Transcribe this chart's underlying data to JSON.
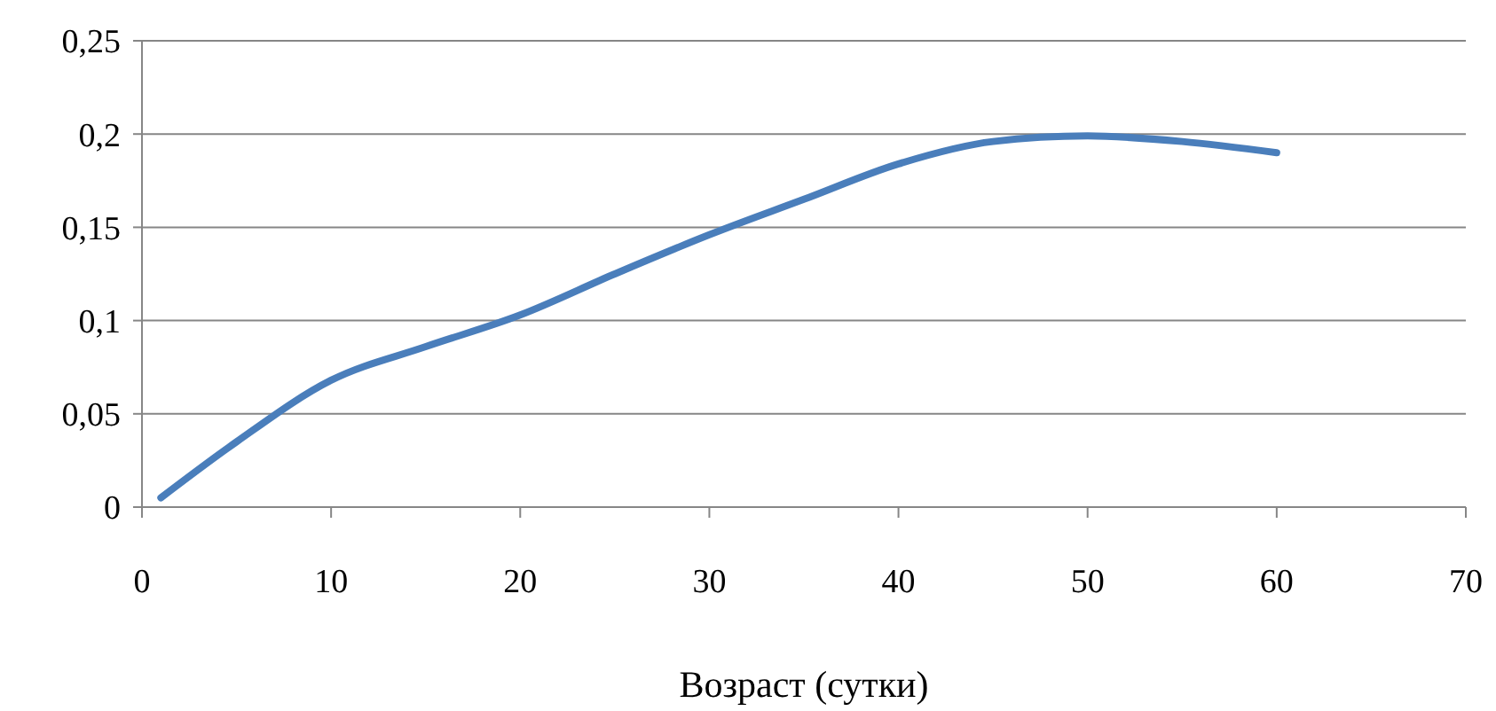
{
  "chart_data": {
    "type": "line",
    "xlabel": "Возраст (сутки)",
    "x": [
      1,
      5,
      10,
      15,
      20,
      25,
      30,
      35,
      40,
      45,
      50,
      55,
      60
    ],
    "series": [
      {
        "color": "#4a7ebb",
        "values": [
          0.005,
          0.035,
          0.068,
          0.086,
          0.103,
          0.125,
          0.146,
          0.165,
          0.184,
          0.196,
          0.199,
          0.196,
          0.19
        ]
      }
    ],
    "xlim": [
      0,
      70
    ],
    "xticks": [
      0,
      10,
      20,
      30,
      40,
      50,
      60,
      70
    ],
    "ylim": [
      0,
      0.25
    ],
    "yticks": [
      {
        "value": 0,
        "label": "0"
      },
      {
        "value": 0.05,
        "label": "0,05"
      },
      {
        "value": 0.1,
        "label": "0,1"
      },
      {
        "value": 0.15,
        "label": "0,15"
      },
      {
        "value": 0.2,
        "label": "0,2"
      },
      {
        "value": 0.25,
        "label": "0,25"
      }
    ],
    "grid": "y",
    "marker": "none",
    "line_style": "solid"
  }
}
